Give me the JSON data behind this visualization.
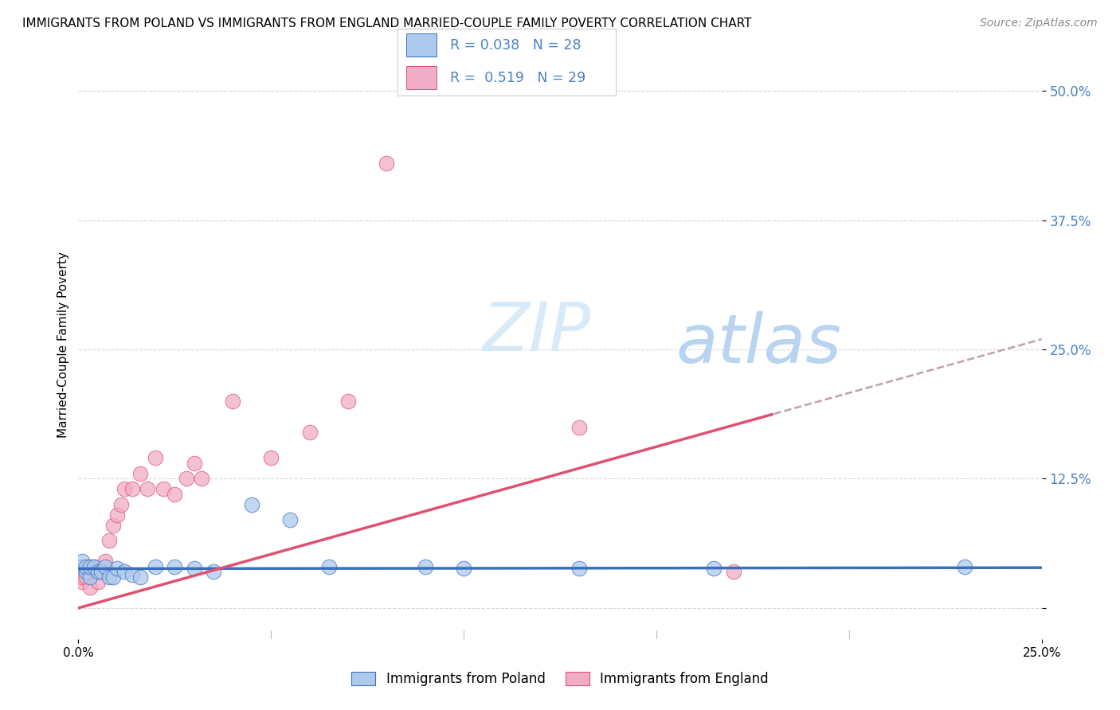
{
  "title": "IMMIGRANTS FROM POLAND VS IMMIGRANTS FROM ENGLAND MARRIED-COUPLE FAMILY POVERTY CORRELATION CHART",
  "source": "Source: ZipAtlas.com",
  "ylabel": "Married-Couple Family Poverty",
  "y_tick_labels": [
    "",
    "12.5%",
    "25.0%",
    "37.5%",
    "50.0%"
  ],
  "y_tick_values": [
    0.0,
    0.125,
    0.25,
    0.375,
    0.5
  ],
  "x_range": [
    0,
    0.25
  ],
  "y_range": [
    -0.03,
    0.54
  ],
  "legend_label1": "Immigrants from Poland",
  "legend_label2": "Immigrants from England",
  "R1": 0.038,
  "N1": 28,
  "R2": 0.519,
  "N2": 29,
  "color_poland": "#adc9ed",
  "color_england": "#f0adc5",
  "trendline_poland_color": "#3a6fbc",
  "trendline_england_color": "#e05070",
  "poland_x": [
    0.001,
    0.001,
    0.002,
    0.002,
    0.003,
    0.003,
    0.004,
    0.005,
    0.006,
    0.007,
    0.008,
    0.009,
    0.01,
    0.012,
    0.014,
    0.016,
    0.02,
    0.025,
    0.03,
    0.035,
    0.045,
    0.055,
    0.065,
    0.09,
    0.1,
    0.13,
    0.165,
    0.23
  ],
  "poland_y": [
    0.04,
    0.045,
    0.035,
    0.04,
    0.03,
    0.04,
    0.04,
    0.035,
    0.035,
    0.04,
    0.03,
    0.03,
    0.038,
    0.035,
    0.032,
    0.03,
    0.04,
    0.04,
    0.038,
    0.035,
    0.1,
    0.085,
    0.04,
    0.04,
    0.038,
    0.038,
    0.038,
    0.04
  ],
  "england_x": [
    0.001,
    0.001,
    0.002,
    0.003,
    0.004,
    0.005,
    0.006,
    0.007,
    0.008,
    0.009,
    0.01,
    0.011,
    0.012,
    0.014,
    0.016,
    0.018,
    0.02,
    0.022,
    0.025,
    0.028,
    0.03,
    0.032,
    0.04,
    0.05,
    0.06,
    0.07,
    0.08,
    0.13,
    0.17
  ],
  "england_y": [
    0.025,
    0.03,
    0.03,
    0.02,
    0.04,
    0.025,
    0.035,
    0.045,
    0.065,
    0.08,
    0.09,
    0.1,
    0.115,
    0.115,
    0.13,
    0.115,
    0.145,
    0.115,
    0.11,
    0.125,
    0.14,
    0.125,
    0.2,
    0.145,
    0.17,
    0.2,
    0.43,
    0.175,
    0.035
  ],
  "trendline_start_x": 0.0,
  "trendline_end_x": 0.25,
  "poland_trend_y0": 0.038,
  "poland_trend_y1": 0.039,
  "england_trend_y0": 0.0,
  "england_trend_y1": 0.26
}
